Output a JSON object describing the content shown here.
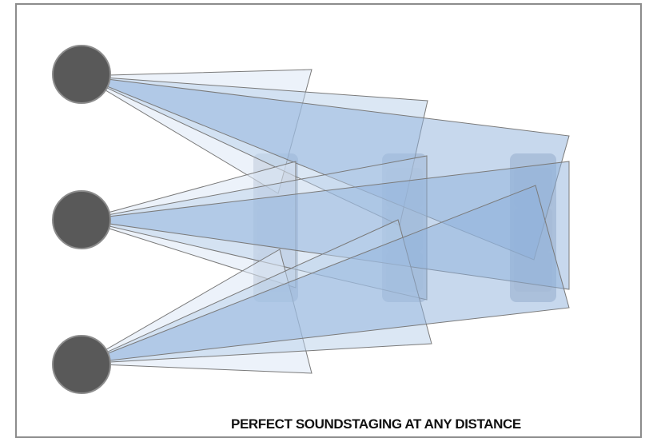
{
  "caption": "PERFECT SOUNDSTAGING AT ANY DISTANCE",
  "colors": {
    "speaker_fill": "#595959",
    "speaker_stroke": "#8c8c8c",
    "beam_light": "#dce8f5",
    "beam_mid": "#b7cfe9",
    "beam_dark": "#8fb1dc",
    "beam_stroke": "#7a7a7a",
    "seat": "#9aa9bd",
    "frame": "#8c8c8c"
  },
  "icons": {
    "speakers": [
      "speaker-top-icon",
      "speaker-middle-icon",
      "speaker-bottom-icon"
    ],
    "seats": [
      "seat-row-1-icon",
      "seat-row-2-icon",
      "seat-row-3-icon"
    ]
  }
}
